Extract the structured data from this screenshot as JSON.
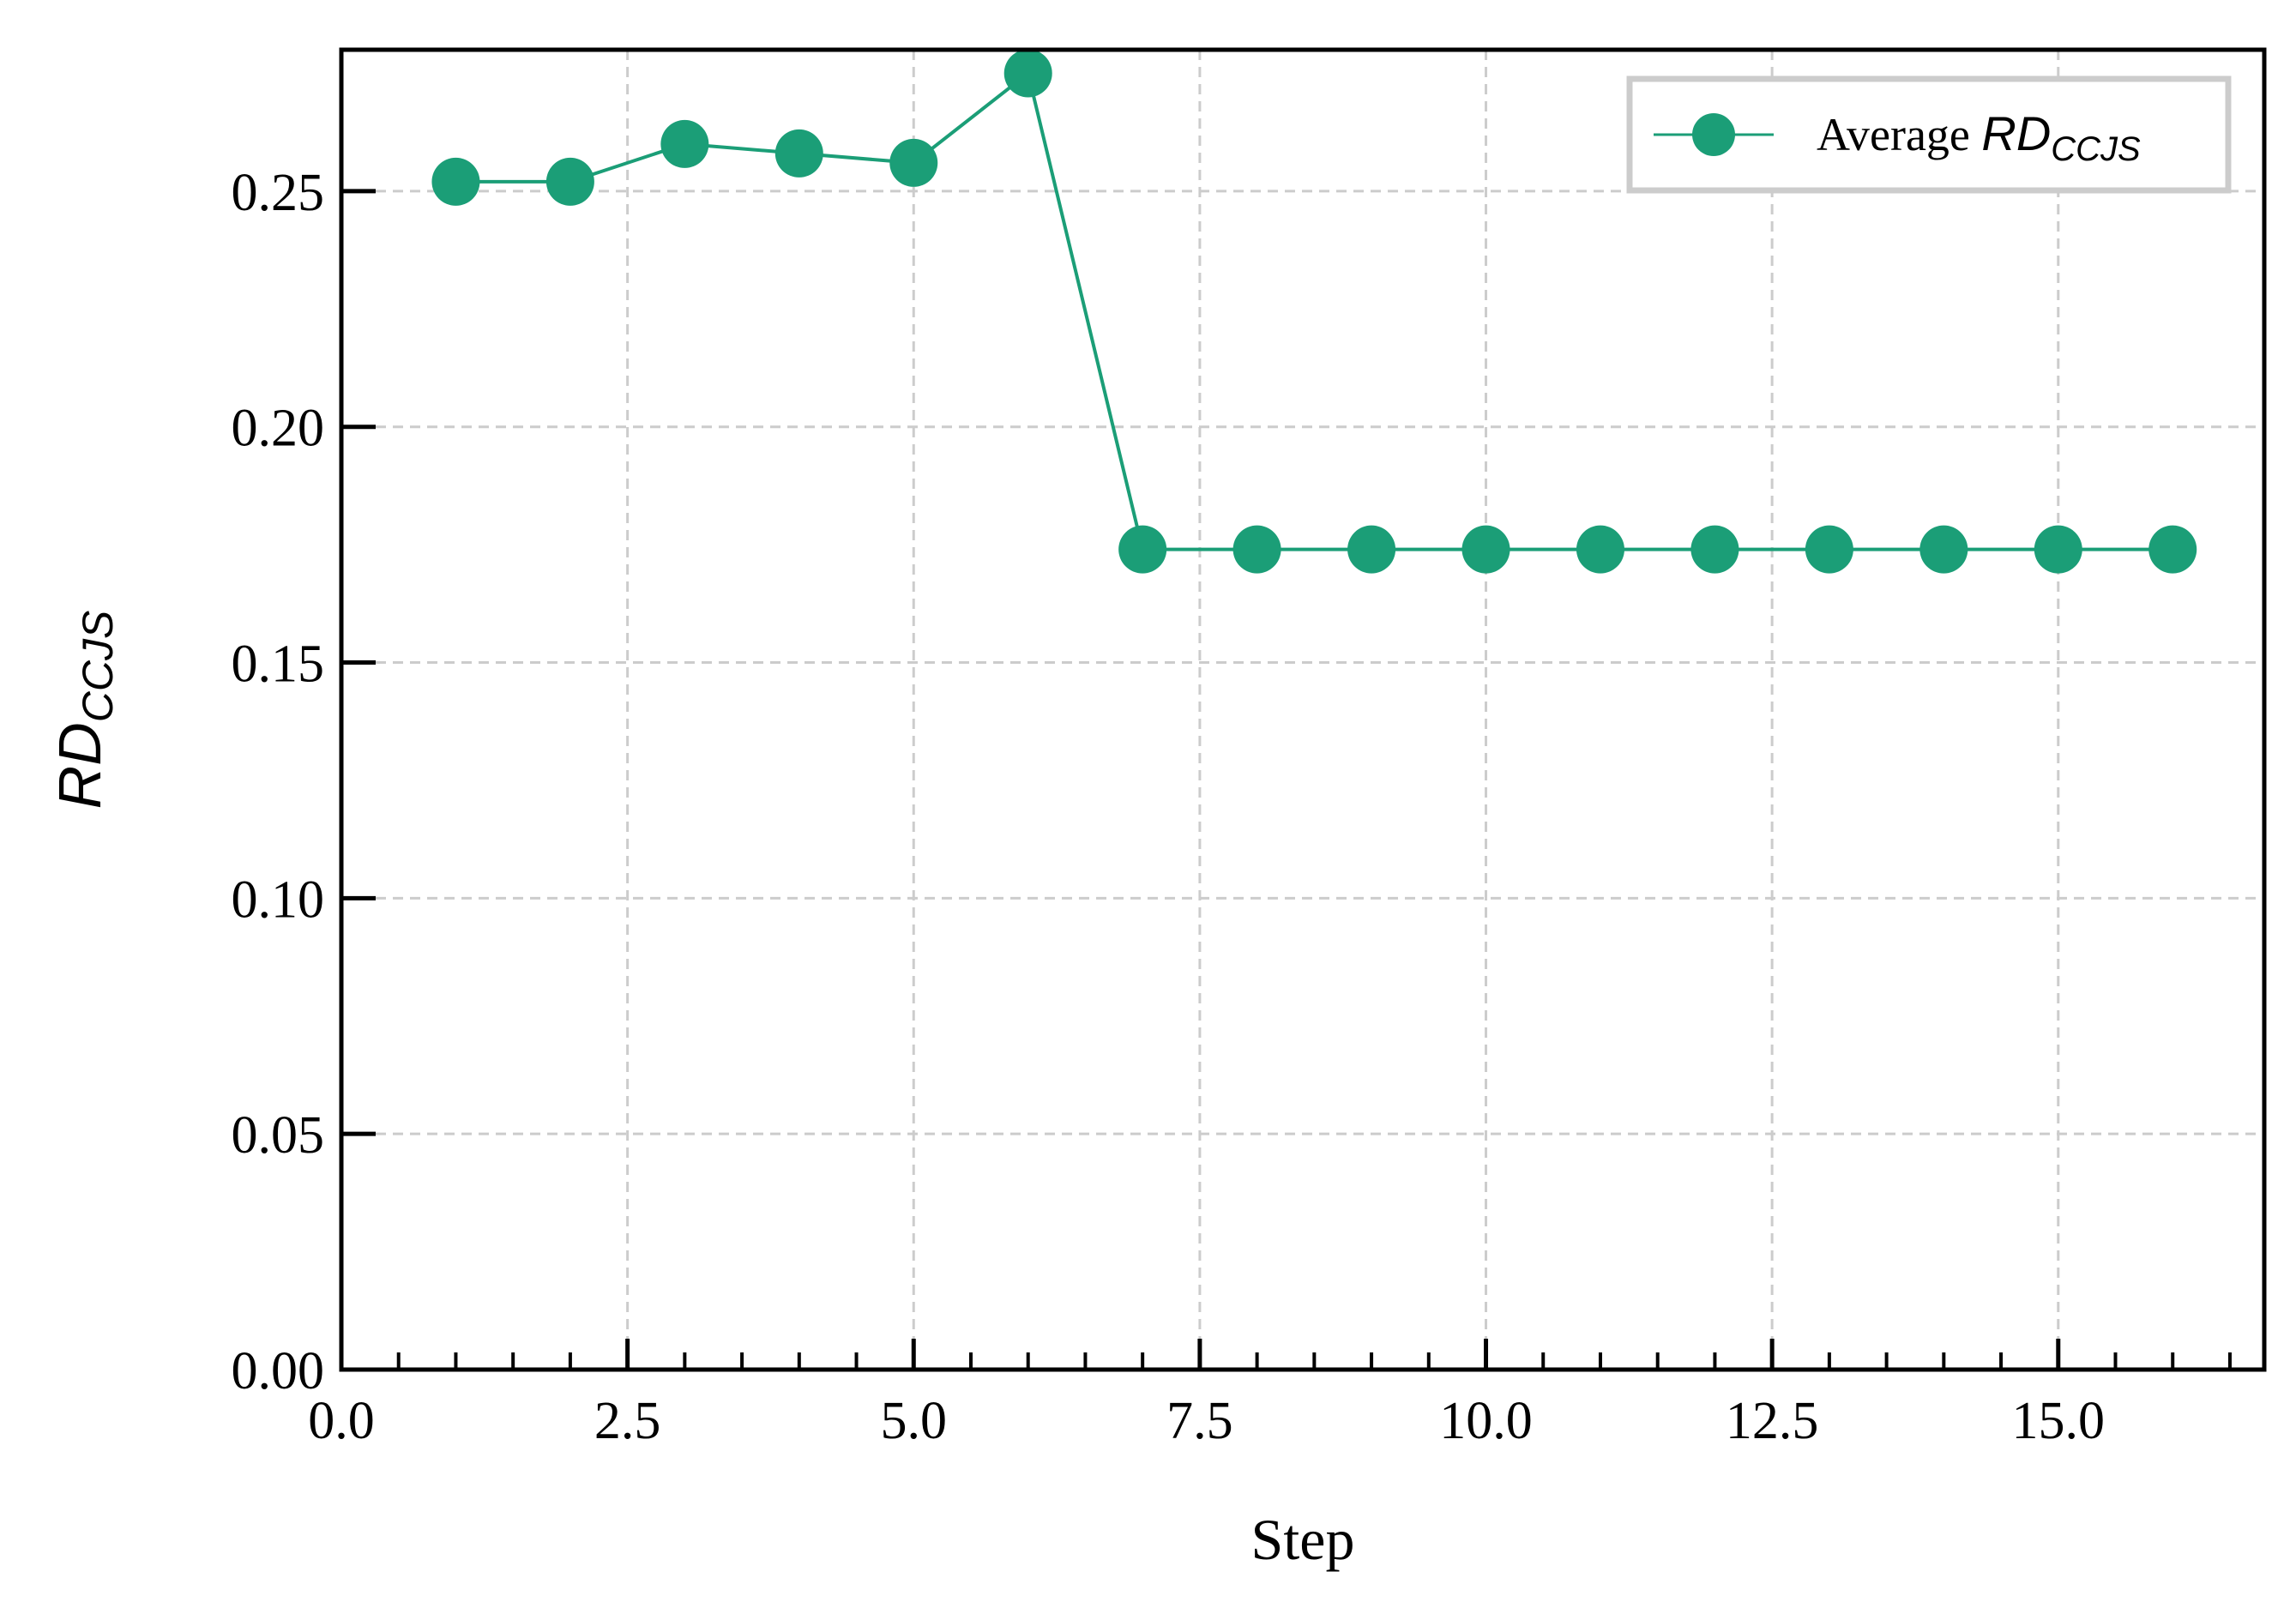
{
  "chart_data": {
    "type": "line",
    "xlabel": "Step",
    "ylabel": {
      "main": "RD",
      "sub": "CCJS"
    },
    "xlim": [
      0,
      16.8
    ],
    "ylim": [
      0,
      0.28
    ],
    "x_ticks": [
      "0.0",
      "2.5",
      "5.0",
      "7.5",
      "10.0",
      "12.5",
      "15.0"
    ],
    "y_ticks": [
      "0.00",
      "0.05",
      "0.10",
      "0.15",
      "0.20",
      "0.25"
    ],
    "grid": true,
    "legend_position": "top-right",
    "series": [
      {
        "name": "Average RD_CCJS",
        "legend_prefix": "Average ",
        "legend_main": "RD",
        "legend_sub": "CCJS",
        "color": "#1b9e77",
        "x": [
          1,
          2,
          3,
          4,
          5,
          6,
          7,
          8,
          9,
          10,
          11,
          12,
          13,
          14,
          15,
          16
        ],
        "y": [
          0.252,
          0.252,
          0.26,
          0.258,
          0.256,
          0.275,
          0.174,
          0.174,
          0.174,
          0.174,
          0.174,
          0.174,
          0.174,
          0.174,
          0.174,
          0.174
        ]
      }
    ]
  }
}
